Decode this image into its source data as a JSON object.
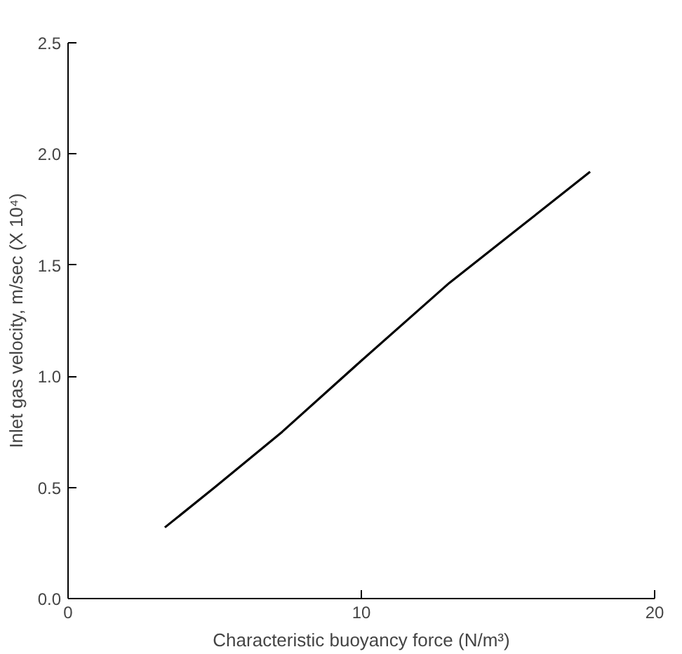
{
  "chart_data": {
    "type": "line",
    "xlabel": "Characteristic buoyancy force (N/m³)",
    "ylabel": "Inlet gas velocity, m/sec (X 10⁴)",
    "series": [
      {
        "color": "#000000",
        "x": [
          3.3,
          5.0,
          7.3,
          10.0,
          13.0,
          15.5,
          17.8
        ],
        "values": [
          0.32,
          0.5,
          0.75,
          1.07,
          1.42,
          1.68,
          1.92
        ]
      }
    ],
    "xlim": [
      0,
      20
    ],
    "xticks": [
      0,
      10,
      20
    ],
    "ylim": [
      0,
      2.5
    ],
    "yticks": [
      {
        "value": 0,
        "label": "0.0"
      },
      {
        "value": 0.5,
        "label": "0.5"
      },
      {
        "value": 1,
        "label": "1.0"
      },
      {
        "value": 1.5,
        "label": "1.5"
      },
      {
        "value": 2,
        "label": "2.0"
      },
      {
        "value": 2.5,
        "label": "2.5"
      }
    ],
    "grid": false,
    "marker": "none",
    "line_style": "solid"
  }
}
